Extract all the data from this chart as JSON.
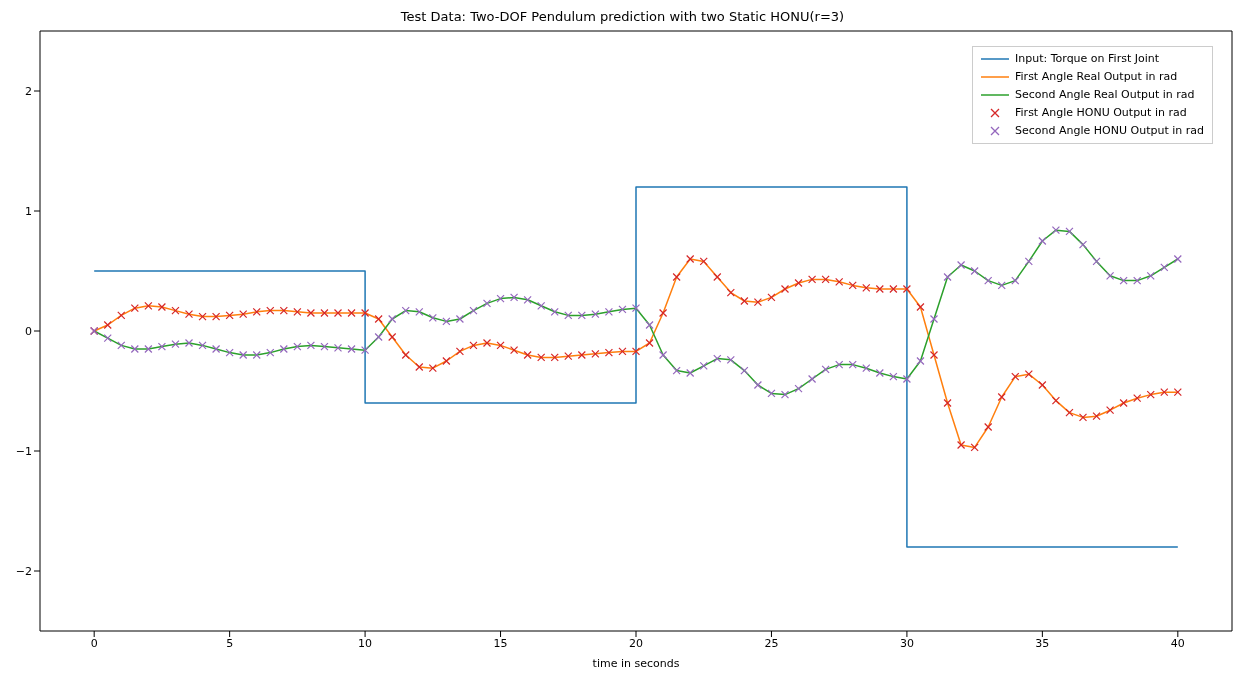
{
  "chart_data": {
    "type": "line",
    "title": "Test Data: Two-DOF Pendulum prediction with two Static HONU(r=3)",
    "xlabel": "time in seconds",
    "xlim": [
      -2,
      42
    ],
    "ylim": [
      -2.5,
      2.5
    ],
    "xticks": [
      0,
      5,
      10,
      15,
      20,
      25,
      30,
      35,
      40
    ],
    "yticks": [
      {
        "value": -2,
        "label": "−2"
      },
      {
        "value": -1,
        "label": "−1"
      },
      0,
      1,
      2
    ],
    "grid": false,
    "legend": "top right",
    "x": [
      0,
      0.5,
      1,
      1.5,
      2,
      2.5,
      3,
      3.5,
      4,
      4.5,
      5,
      5.5,
      6,
      6.5,
      7,
      7.5,
      8,
      8.5,
      9,
      9.5,
      10,
      10.5,
      11,
      11.5,
      12,
      12.5,
      13,
      13.5,
      14,
      14.5,
      15,
      15.5,
      16,
      16.5,
      17,
      17.5,
      18,
      18.5,
      19,
      19.5,
      20,
      20.5,
      21,
      21.5,
      22,
      22.5,
      23,
      23.5,
      24,
      24.5,
      25,
      25.5,
      26,
      26.5,
      27,
      27.5,
      28,
      28.5,
      29,
      29.5,
      30,
      30.5,
      31,
      31.5,
      32,
      32.5,
      33,
      33.5,
      34,
      34.5,
      35,
      35.5,
      36,
      36.5,
      37,
      37.5,
      38,
      38.5,
      39,
      39.5,
      40
    ],
    "series": [
      {
        "name": "Input: Torque on First Joint",
        "type": "step",
        "color": "#1f77b4",
        "x": [
          0,
          10,
          20,
          30,
          40
        ],
        "values": [
          0.5,
          -0.6,
          1.2,
          -1.8,
          -1.8
        ]
      },
      {
        "name": "First Angle Real Output in rad",
        "color": "#ff7f0e",
        "values": [
          0,
          0.05,
          0.13,
          0.19,
          0.21,
          0.2,
          0.17,
          0.14,
          0.12,
          0.12,
          0.13,
          0.14,
          0.16,
          0.17,
          0.17,
          0.16,
          0.15,
          0.15,
          0.15,
          0.15,
          0.15,
          0.1,
          -0.05,
          -0.2,
          -0.3,
          -0.31,
          -0.25,
          -0.17,
          -0.12,
          -0.1,
          -0.12,
          -0.16,
          -0.2,
          -0.22,
          -0.22,
          -0.21,
          -0.2,
          -0.19,
          -0.18,
          -0.17,
          -0.17,
          -0.1,
          0.15,
          0.45,
          0.6,
          0.58,
          0.45,
          0.32,
          0.25,
          0.24,
          0.28,
          0.35,
          0.4,
          0.43,
          0.43,
          0.41,
          0.38,
          0.36,
          0.35,
          0.35,
          0.35,
          0.2,
          -0.2,
          -0.6,
          -0.95,
          -0.97,
          -0.8,
          -0.55,
          -0.38,
          -0.36,
          -0.45,
          -0.58,
          -0.68,
          -0.72,
          -0.71,
          -0.66,
          -0.6,
          -0.56,
          -0.53,
          -0.51,
          -0.51
        ]
      },
      {
        "name": "Second Angle Real Output in rad",
        "color": "#2ca02c",
        "values": [
          0,
          -0.06,
          -0.12,
          -0.15,
          -0.15,
          -0.13,
          -0.11,
          -0.1,
          -0.12,
          -0.15,
          -0.18,
          -0.2,
          -0.2,
          -0.18,
          -0.15,
          -0.13,
          -0.12,
          -0.13,
          -0.14,
          -0.15,
          -0.16,
          -0.05,
          0.1,
          0.17,
          0.16,
          0.11,
          0.08,
          0.1,
          0.17,
          0.23,
          0.27,
          0.28,
          0.26,
          0.21,
          0.16,
          0.13,
          0.13,
          0.14,
          0.16,
          0.18,
          0.19,
          0.05,
          -0.2,
          -0.33,
          -0.35,
          -0.29,
          -0.23,
          -0.24,
          -0.33,
          -0.45,
          -0.52,
          -0.53,
          -0.48,
          -0.4,
          -0.32,
          -0.28,
          -0.28,
          -0.31,
          -0.35,
          -0.38,
          -0.4,
          -0.25,
          0.1,
          0.45,
          0.55,
          0.5,
          0.42,
          0.38,
          0.42,
          0.58,
          0.75,
          0.84,
          0.83,
          0.72,
          0.58,
          0.46,
          0.42,
          0.42,
          0.46,
          0.53,
          0.6
        ]
      },
      {
        "name": "First Angle HONU Output in rad",
        "type": "scatter",
        "marker": "cross",
        "color": "#d62728",
        "values": [
          0,
          0.05,
          0.13,
          0.19,
          0.21,
          0.2,
          0.17,
          0.14,
          0.12,
          0.12,
          0.13,
          0.14,
          0.16,
          0.17,
          0.17,
          0.16,
          0.15,
          0.15,
          0.15,
          0.15,
          0.15,
          0.1,
          -0.05,
          -0.2,
          -0.3,
          -0.31,
          -0.25,
          -0.17,
          -0.12,
          -0.1,
          -0.12,
          -0.16,
          -0.2,
          -0.22,
          -0.22,
          -0.21,
          -0.2,
          -0.19,
          -0.18,
          -0.17,
          -0.17,
          -0.1,
          0.15,
          0.45,
          0.6,
          0.58,
          0.45,
          0.32,
          0.25,
          0.24,
          0.28,
          0.35,
          0.4,
          0.43,
          0.43,
          0.41,
          0.38,
          0.36,
          0.35,
          0.35,
          0.35,
          0.2,
          -0.2,
          -0.6,
          -0.95,
          -0.97,
          -0.8,
          -0.55,
          -0.38,
          -0.36,
          -0.45,
          -0.58,
          -0.68,
          -0.72,
          -0.71,
          -0.66,
          -0.6,
          -0.56,
          -0.53,
          -0.51,
          -0.51
        ]
      },
      {
        "name": "Second Angle HONU Output in rad",
        "type": "scatter",
        "marker": "cross",
        "color": "#9467bd",
        "values": [
          0,
          -0.06,
          -0.12,
          -0.15,
          -0.15,
          -0.13,
          -0.11,
          -0.1,
          -0.12,
          -0.15,
          -0.18,
          -0.2,
          -0.2,
          -0.18,
          -0.15,
          -0.13,
          -0.12,
          -0.13,
          -0.14,
          -0.15,
          -0.16,
          -0.05,
          0.1,
          0.17,
          0.16,
          0.11,
          0.08,
          0.1,
          0.17,
          0.23,
          0.27,
          0.28,
          0.26,
          0.21,
          0.16,
          0.13,
          0.13,
          0.14,
          0.16,
          0.18,
          0.19,
          0.05,
          -0.2,
          -0.33,
          -0.35,
          -0.29,
          -0.23,
          -0.24,
          -0.33,
          -0.45,
          -0.52,
          -0.53,
          -0.48,
          -0.4,
          -0.32,
          -0.28,
          -0.28,
          -0.31,
          -0.35,
          -0.38,
          -0.4,
          -0.25,
          0.1,
          0.45,
          0.55,
          0.5,
          0.42,
          0.38,
          0.42,
          0.58,
          0.75,
          0.84,
          0.83,
          0.72,
          0.58,
          0.46,
          0.42,
          0.42,
          0.46,
          0.53,
          0.6
        ]
      }
    ]
  }
}
